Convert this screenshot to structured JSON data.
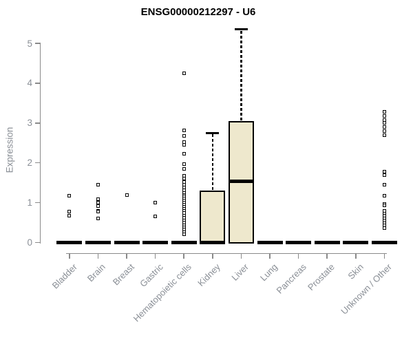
{
  "title": "ENSG00000212297 - U6",
  "colors": {
    "background": "#ffffff",
    "title_color": "#000000",
    "axis_color": "#8a8a8a",
    "label_color": "#8a8f96",
    "box_fill": "#eee8cd",
    "box_border": "#000000",
    "median_color": "#000000",
    "outlier_fill": "#ffffff",
    "outlier_border": "#000000"
  },
  "chart_data": {
    "type": "boxplot",
    "title": "ENSG00000212297 - U6",
    "xlabel": "",
    "ylabel": "Expression",
    "ylim": [
      0,
      5
    ],
    "yticks": [
      0,
      1,
      2,
      3,
      4,
      5
    ],
    "grid": false,
    "legend": false,
    "categories": [
      "Bladder",
      "Brain",
      "Breast",
      "Gastric",
      "Hematopoietic cells",
      "Kidney",
      "Liver",
      "Lung",
      "Pancreas",
      "Prostate",
      "Skin",
      "Unknown / Other"
    ],
    "series": [
      {
        "name": "Bladder",
        "q1": 0,
        "median": 0,
        "q3": 0,
        "whisker_low": 0,
        "whisker_high": 0,
        "outliers": [
          1.17,
          0.77,
          0.68
        ]
      },
      {
        "name": "Brain",
        "q1": 0,
        "median": 0,
        "q3": 0,
        "whisker_low": 0,
        "whisker_high": 0,
        "outliers": [
          1.45,
          1.08,
          1.0,
          0.92,
          0.8,
          0.78,
          0.6
        ]
      },
      {
        "name": "Breast",
        "q1": 0,
        "median": 0,
        "q3": 0,
        "whisker_low": 0,
        "whisker_high": 0,
        "outliers": [
          1.2
        ]
      },
      {
        "name": "Gastric",
        "q1": 0,
        "median": 0,
        "q3": 0,
        "whisker_low": 0,
        "whisker_high": 0,
        "outliers": [
          1.0,
          0.65
        ]
      },
      {
        "name": "Hematopoietic cells",
        "q1": 0,
        "median": 0,
        "q3": 0,
        "whisker_low": 0,
        "whisker_high": 0,
        "outliers": [
          4.25,
          2.81,
          2.68,
          2.52,
          2.45,
          2.23,
          1.97,
          1.85,
          1.68,
          1.6,
          1.52,
          1.45,
          1.38,
          1.31,
          1.25,
          1.2,
          1.15,
          1.1,
          1.05,
          1.0,
          0.95,
          0.9,
          0.85,
          0.8,
          0.74,
          0.68,
          0.62,
          0.56,
          0.5,
          0.44,
          0.38,
          0.32,
          0.26,
          0.2
        ]
      },
      {
        "name": "Kidney",
        "q1": 0,
        "median": 0,
        "q3": 1.3,
        "whisker_low": 0,
        "whisker_high": 2.75,
        "outliers": []
      },
      {
        "name": "Liver",
        "q1": 0,
        "median": 1.54,
        "q3": 3.05,
        "whisker_low": 0,
        "whisker_high": 5.35,
        "outliers": []
      },
      {
        "name": "Lung",
        "q1": 0,
        "median": 0,
        "q3": 0,
        "whisker_low": 0,
        "whisker_high": 0,
        "outliers": []
      },
      {
        "name": "Pancreas",
        "q1": 0,
        "median": 0,
        "q3": 0,
        "whisker_low": 0,
        "whisker_high": 0,
        "outliers": []
      },
      {
        "name": "Prostate",
        "q1": 0,
        "median": 0,
        "q3": 0,
        "whisker_low": 0,
        "whisker_high": 0,
        "outliers": []
      },
      {
        "name": "Skin",
        "q1": 0,
        "median": 0,
        "q3": 0,
        "whisker_low": 0,
        "whisker_high": 0,
        "outliers": []
      },
      {
        "name": "Unknown / Other",
        "q1": 0,
        "median": 0,
        "q3": 0,
        "whisker_low": 0,
        "whisker_high": 0,
        "outliers": [
          3.28,
          3.18,
          3.08,
          3.0,
          2.9,
          2.79,
          2.7,
          1.78,
          1.7,
          1.45,
          1.17,
          0.97,
          0.93,
          0.79,
          0.73,
          0.67,
          0.61,
          0.55,
          0.49,
          0.43,
          0.37
        ]
      }
    ]
  }
}
